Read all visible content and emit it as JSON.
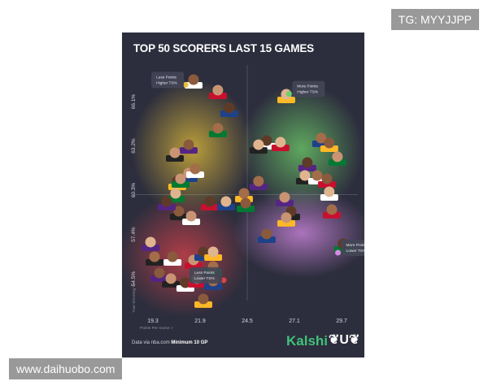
{
  "watermarks": {
    "top_right": "TG: MYYJJPP",
    "bottom_left": "www.daihuobo.com"
  },
  "footer": {
    "source": "Data via nba.com",
    "minimum": "Minimum 10 GP",
    "brand": "Kalshi",
    "brand_color": "#3fc27a",
    "badge_icon": "laurel-u-icon"
  },
  "colors": {
    "background": "#2d2e3d",
    "quadrant_less_higher": "#e8c23a",
    "quadrant_more_higher": "#6fd06a",
    "quadrant_less_lower": "#d9434b",
    "quadrant_more_lower": "#d58be6"
  },
  "chart_data": {
    "type": "scatter",
    "title": "TOP 50 SCORERS LAST 15 GAMES",
    "xlabel": "Points Per Game >",
    "ylabel": "True Shooting % >",
    "xticks": [
      "19.3",
      "21.9",
      "24.5",
      "27.1",
      "29.7"
    ],
    "yticks": [
      "66.1%",
      "63.2%",
      "60.3%",
      "57.4%",
      "54.5%"
    ],
    "xlim": [
      18.5,
      30.6
    ],
    "ylim": [
      52.3,
      68.6
    ],
    "grid": false,
    "quadrant_center": {
      "x": 24.5,
      "y": 60.0
    },
    "quadrant_labels": [
      {
        "text": "Less Points\nHigher TS%",
        "x": 21.1,
        "y": 67.2,
        "color": "#e8c23a"
      },
      {
        "text": "More Points\nHigher TS%",
        "x": 26.8,
        "y": 66.6,
        "color": "#6fd06a"
      },
      {
        "text": "Less Points\nLower TS%",
        "x": 23.2,
        "y": 54.4,
        "color": "#d9434b"
      },
      {
        "text": "More Points\nLower TS%",
        "x": 29.5,
        "y": 56.2,
        "color": "#d58be6"
      }
    ],
    "points": [
      [
        21.54,
        67.43
      ],
      [
        22.88,
        66.74
      ],
      [
        23.51,
        65.57
      ],
      [
        26.65,
        66.47
      ],
      [
        22.88,
        64.24
      ],
      [
        21.27,
        63.17
      ],
      [
        20.51,
        62.64
      ],
      [
        25.57,
        63.44
      ],
      [
        26.33,
        63.33
      ],
      [
        28.57,
        63.6
      ],
      [
        29.02,
        63.28
      ],
      [
        29.47,
        62.38
      ],
      [
        27.81,
        62.0
      ],
      [
        27.68,
        61.15
      ],
      [
        28.35,
        61.15
      ],
      [
        28.89,
        60.94
      ],
      [
        21.27,
        61.31
      ],
      [
        20.64,
        60.78
      ],
      [
        20.55,
        59.98
      ],
      [
        25.12,
        60.78
      ],
      [
        20.73,
        58.81
      ],
      [
        21.41,
        58.49
      ],
      [
        22.44,
        59.45
      ],
      [
        23.33,
        59.45
      ],
      [
        24.32,
        59.98
      ],
      [
        24.41,
        59.34
      ],
      [
        26.56,
        59.72
      ],
      [
        26.92,
        58.81
      ],
      [
        29.02,
        60.09
      ],
      [
        29.16,
        58.92
      ],
      [
        25.57,
        57.32
      ],
      [
        26.65,
        58.39
      ],
      [
        29.78,
        56.68
      ],
      [
        19.17,
        56.79
      ],
      [
        19.39,
        55.83
      ],
      [
        20.38,
        55.83
      ],
      [
        21.54,
        55.62
      ],
      [
        22.08,
        56.15
      ],
      [
        22.62,
        56.15
      ],
      [
        22.62,
        55.19
      ],
      [
        19.66,
        54.77
      ],
      [
        20.29,
        54.4
      ],
      [
        21.09,
        54.13
      ],
      [
        21.72,
        54.4
      ],
      [
        22.62,
        54.24
      ],
      [
        22.08,
        53.07
      ],
      [
        20.82,
        60.94
      ],
      [
        20.06,
        59.45
      ],
      [
        25.12,
        63.17
      ],
      [
        21.63,
        61.58
      ]
    ]
  }
}
